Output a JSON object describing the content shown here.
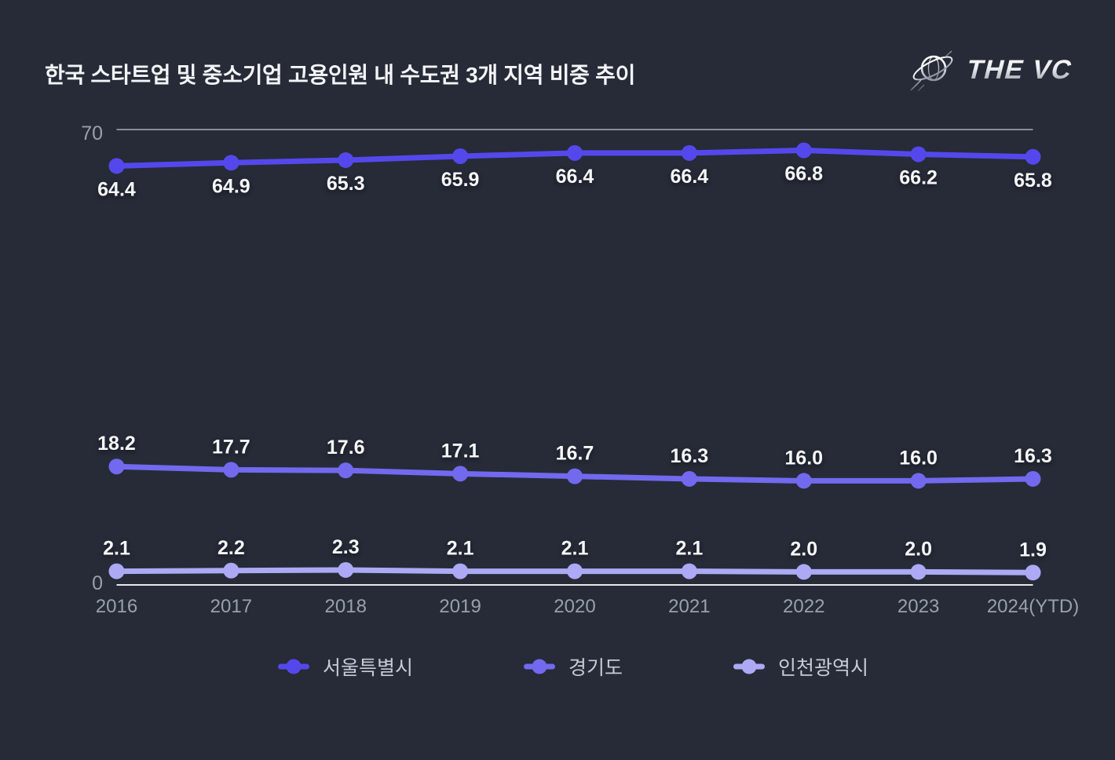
{
  "title": "한국 스타트업 및 중소기업 고용인원 내 수도권 3개 지역 비중 추이",
  "logo": {
    "text": "THE VC"
  },
  "colors": {
    "background": "#262B37",
    "title": "#F3F5F8",
    "axis_text": "#99A0AC",
    "data_label": "#F5F6F8",
    "legend_text": "#C6CBD4",
    "grid_top": "#C9CDD6",
    "baseline": "#F2F3F6",
    "logo_silver_light": "#FFFFFF",
    "logo_silver_dark": "#8F95A0"
  },
  "chart_data": {
    "type": "line",
    "title": "한국 스타트업 및 중소기업 고용인원 내 수도권 3개 지역 비중 추이",
    "x": [
      "2016",
      "2017",
      "2018",
      "2019",
      "2020",
      "2021",
      "2022",
      "2023",
      "2024(YTD)"
    ],
    "series": [
      {
        "name": "서울특별시",
        "color": "#5448EC",
        "label_position": "below",
        "values": [
          64.4,
          64.9,
          65.3,
          65.9,
          66.4,
          66.4,
          66.8,
          66.2,
          65.8
        ]
      },
      {
        "name": "경기도",
        "color": "#7269EF",
        "label_position": "above",
        "values": [
          18.2,
          17.7,
          17.6,
          17.1,
          16.7,
          16.3,
          16.0,
          16.0,
          16.3
        ]
      },
      {
        "name": "인천광역시",
        "color": "#AEA9F4",
        "label_position": "above",
        "values": [
          2.1,
          2.2,
          2.3,
          2.1,
          2.1,
          2.1,
          2.0,
          2.0,
          1.9
        ]
      }
    ],
    "ylim": [
      0,
      70
    ],
    "yticks": [
      {
        "value": 70,
        "label": "70"
      },
      {
        "value": 0,
        "label": "0"
      }
    ],
    "grid": "horizontal lines only at y=70 (light gray) and y=0 (white baseline)",
    "legend_position": "bottom",
    "data_labels": "every point labeled to one decimal"
  }
}
